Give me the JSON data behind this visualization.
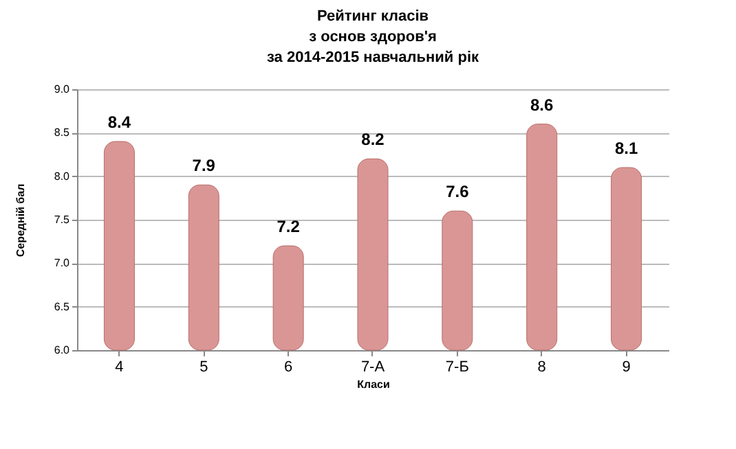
{
  "chart_data": {
    "type": "bar",
    "title": "Рейтинг класів\nз основ здоров'я\nза 2014-2015 навчальний рік",
    "xlabel": "Класи",
    "ylabel": "Середній бал",
    "categories": [
      "4",
      "5",
      "6",
      "7-А",
      "7-Б",
      "8",
      "9"
    ],
    "values": [
      8.4,
      7.9,
      7.2,
      8.2,
      7.6,
      8.6,
      8.1
    ],
    "color": "#d99694",
    "ylim": [
      6,
      9
    ],
    "yticks": [
      {
        "value": 6,
        "label": "6.0"
      },
      {
        "value": 6.5,
        "label": "6.5"
      },
      {
        "value": 7,
        "label": "7.0"
      },
      {
        "value": 7.5,
        "label": "7.5"
      },
      {
        "value": 8,
        "label": "8.0"
      },
      {
        "value": 8.5,
        "label": "8.5"
      },
      {
        "value": 9,
        "label": "9.0"
      }
    ],
    "grid": "y",
    "data_labels": true
  }
}
